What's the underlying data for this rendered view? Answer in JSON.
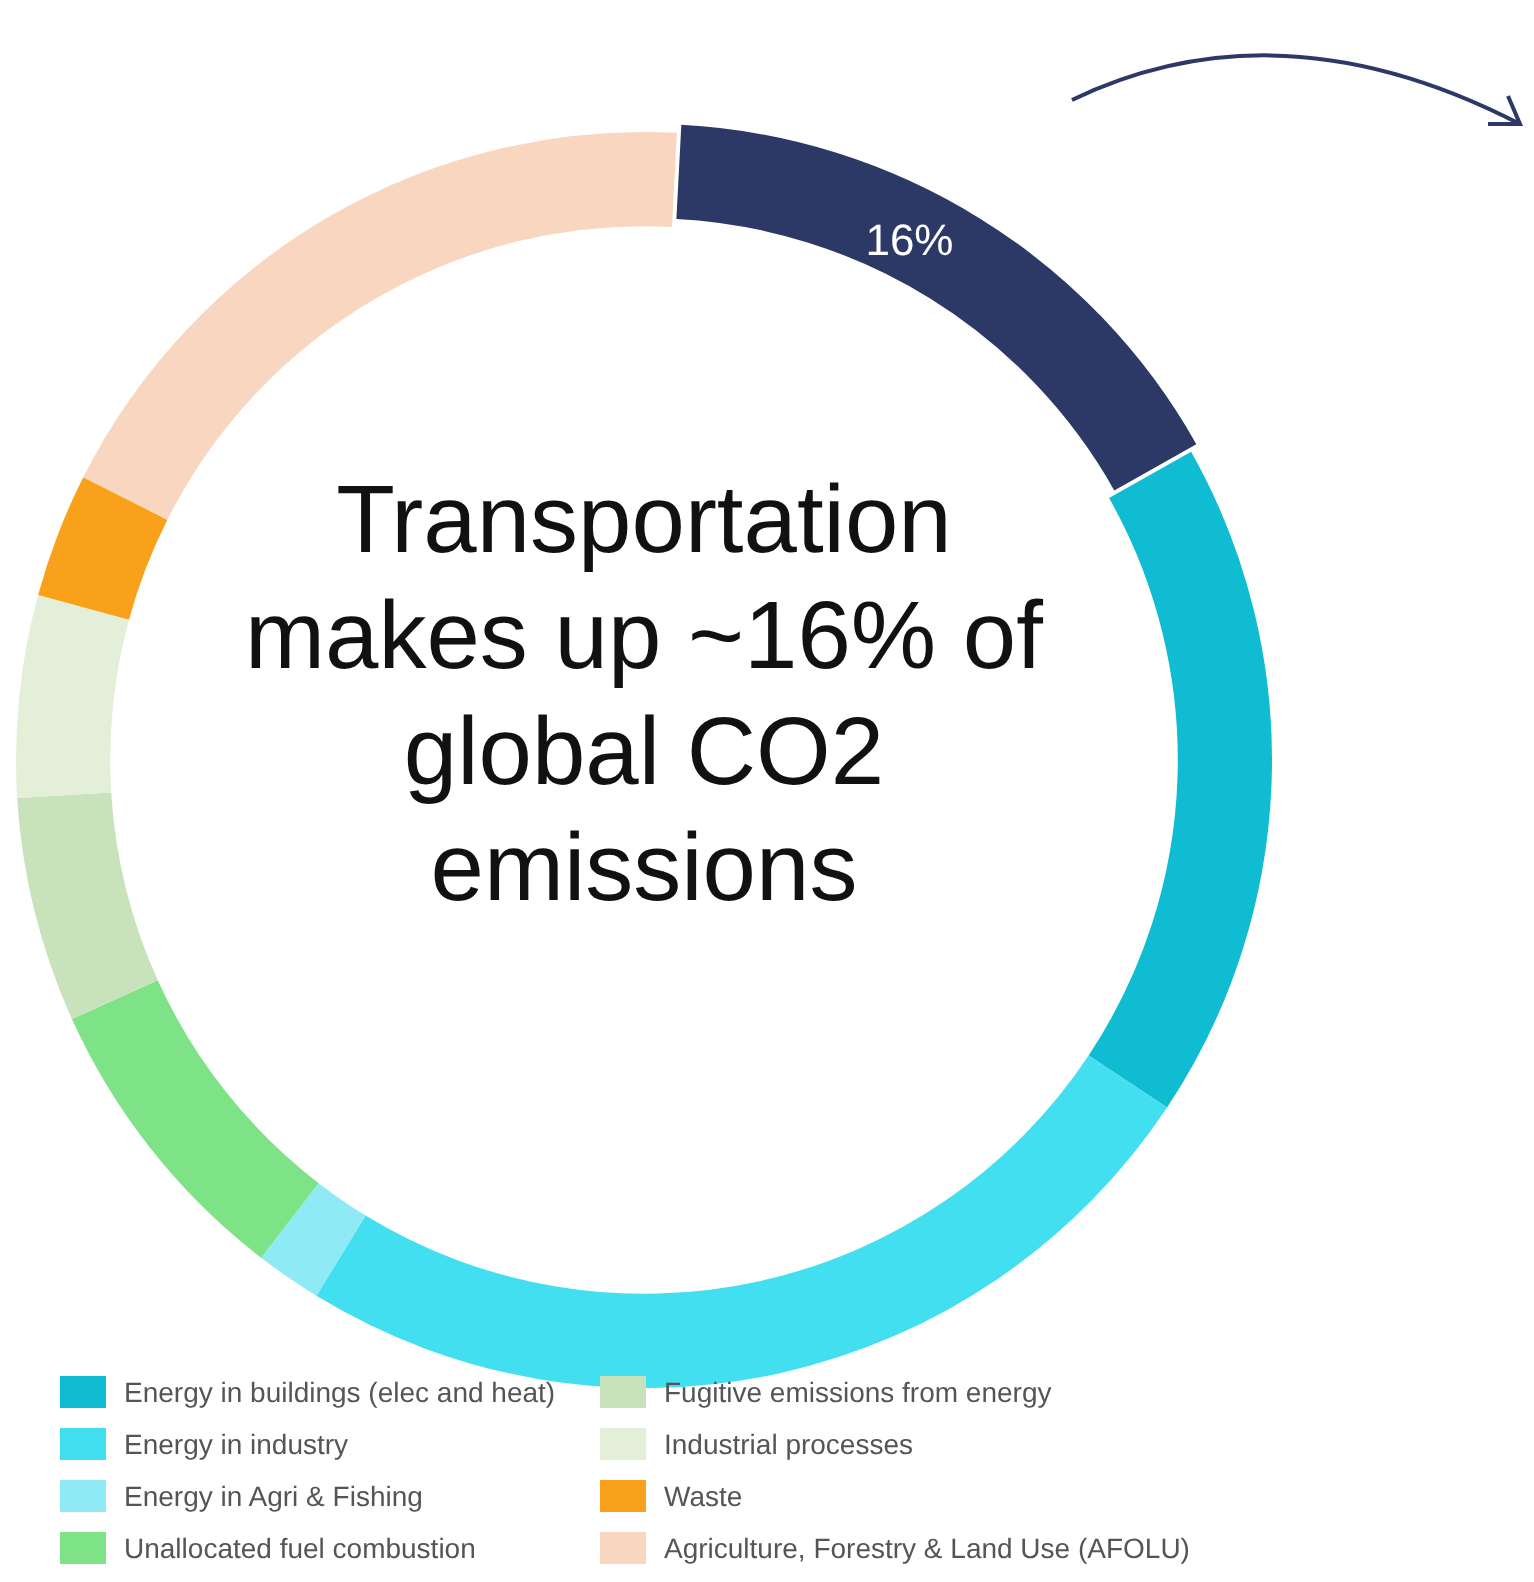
{
  "chart_data": {
    "type": "donut",
    "title": "Transportation makes up ~16% of global CO2 emissions",
    "categories": [
      null,
      "Energy in buildings (elec and heat)",
      "Energy in industry",
      "Energy in Agri & Fishing",
      "Unallocated fuel combustion",
      "Fugitive emissions from energy",
      "Industrial processes",
      "Waste",
      "Agriculture, Forestry & Land Use (AFOLU)"
    ],
    "values": [
      16,
      17.5,
      24.4,
      1.7,
      7.8,
      5.8,
      5.2,
      3.2,
      18.4
    ],
    "colors": [
      "#2c3967",
      "#10bcd2",
      "#42dff0",
      "#8eeaf5",
      "#7de386",
      "#c8e2bb",
      "#e3efd9",
      "#f9a11b",
      "#f8d6bf"
    ],
    "value_labels": [
      "16%",
      null,
      null,
      null,
      null,
      null,
      null,
      null,
      null
    ],
    "legend": "bottom"
  }
}
